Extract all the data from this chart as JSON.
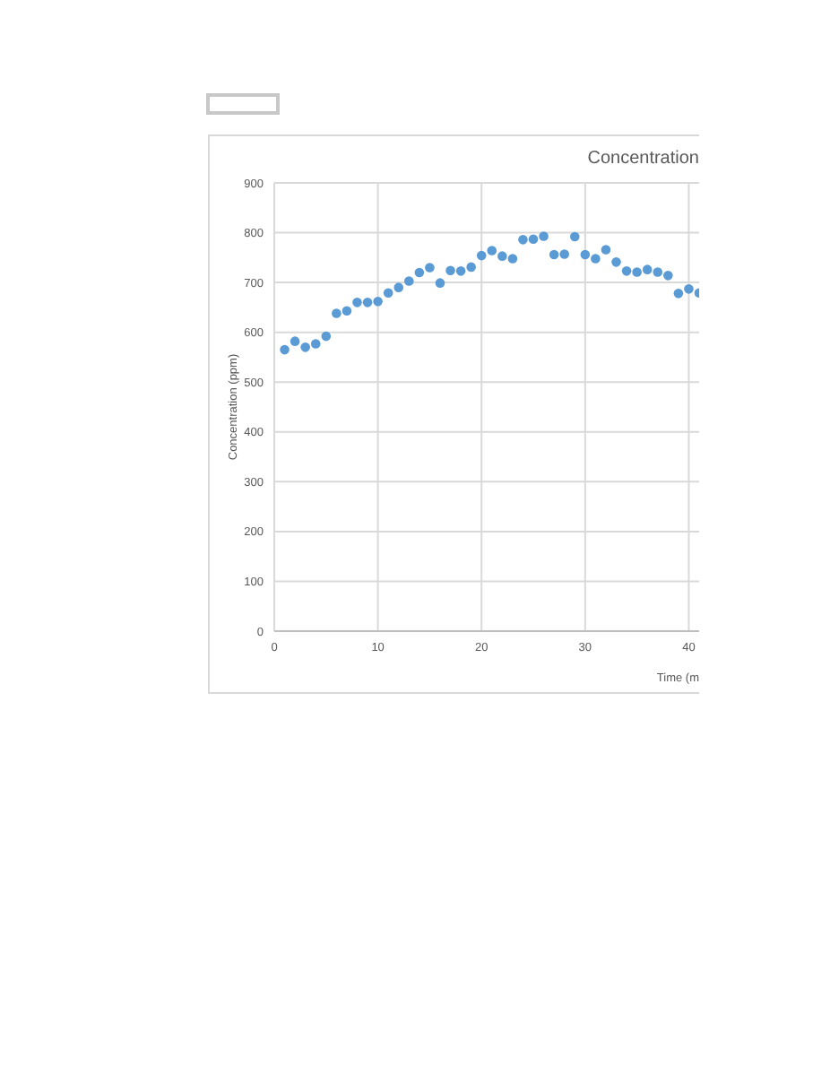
{
  "chart_data": {
    "type": "scatter",
    "title": "Concentration",
    "xlabel": "Time (m",
    "ylabel": "Concentration (ppm)",
    "x": [
      1,
      2,
      3,
      4,
      5,
      6,
      7,
      8,
      9,
      10,
      11,
      12,
      13,
      14,
      15,
      16,
      17,
      18,
      19,
      20,
      21,
      22,
      23,
      24,
      25,
      26,
      27,
      28,
      29,
      30,
      31,
      32,
      33,
      34,
      35,
      36,
      37,
      38,
      39,
      40,
      41
    ],
    "series": [
      {
        "color": "#5b9bd5",
        "values": [
          565,
          582,
          570,
          577,
          592,
          638,
          643,
          660,
          660,
          662,
          679,
          690,
          703,
          720,
          730,
          699,
          724,
          723,
          731,
          754,
          764,
          753,
          748,
          786,
          787,
          793,
          756,
          757,
          792,
          756,
          748,
          766,
          741,
          723,
          721,
          726,
          721,
          714,
          678,
          687,
          679
        ]
      }
    ],
    "xlim": [
      0,
      41
    ],
    "xticks": [
      0,
      10,
      20,
      30,
      40
    ],
    "ylim": [
      0,
      900
    ],
    "yticks": [
      0,
      100,
      200,
      300,
      400,
      500,
      600,
      700,
      800,
      900
    ],
    "grid": true,
    "marker": "circle"
  }
}
